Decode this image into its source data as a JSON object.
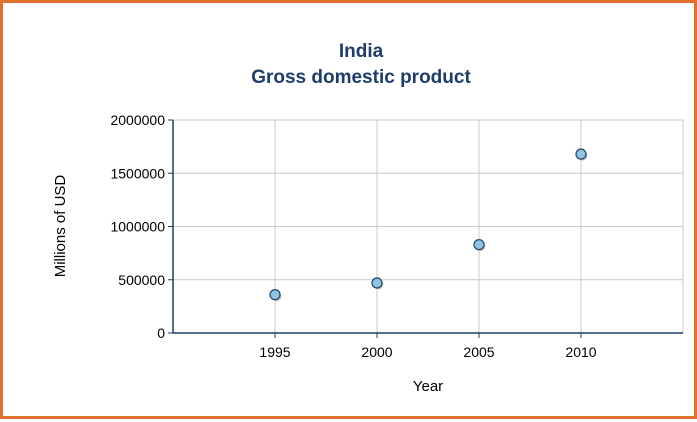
{
  "chart_data": {
    "type": "scatter",
    "title": "India",
    "subtitle": "Gross domestic product",
    "xlabel": "Year",
    "ylabel": "Millions of USD",
    "xlim": [
      1990,
      2015
    ],
    "ylim": [
      0,
      2000000
    ],
    "xticks": [
      1995,
      2000,
      2005,
      2010
    ],
    "yticks": [
      0,
      500000,
      1000000,
      1500000,
      2000000
    ],
    "grid": true,
    "series": [
      {
        "x": [
          1995,
          2000,
          2005,
          2010
        ],
        "y": [
          360000,
          470000,
          830000,
          1680000
        ]
      }
    ],
    "colors": {
      "frame": "#e2702e",
      "title": "#1f3d6b",
      "grid": "#c8c8c8",
      "axis": "#1f3d6b",
      "marker_fill": "#8ec3e3",
      "marker_stroke": "#2a4d6e",
      "marker_shadow": "#a0a0a0"
    }
  }
}
